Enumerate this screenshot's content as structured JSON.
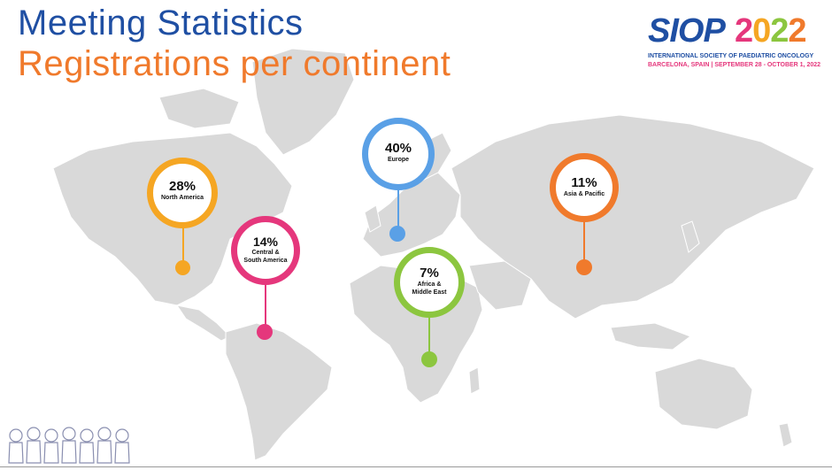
{
  "header": {
    "title": "Meeting Statistics",
    "subtitle": "Registrations per continent"
  },
  "logo": {
    "acronym": "SIOP",
    "year": [
      "2",
      "0",
      "2",
      "2"
    ],
    "organization": "INTERNATIONAL SOCIETY OF PAEDIATRIC ONCOLOGY",
    "event_details": "BARCELONA, SPAIN | SEPTEMBER 28 - OCTOBER 1, 2022"
  },
  "colors": {
    "title_blue": "#1f4fa3",
    "title_orange": "#f07a2c",
    "map_land": "#d9d9d9",
    "north_america": "#f5a623",
    "central_south_america": "#e5377c",
    "europe": "#5aa0e6",
    "africa_middle_east": "#8cc63f",
    "asia_pacific": "#f07a2c"
  },
  "regions": [
    {
      "id": "north_america",
      "percent": "28%",
      "label_line1": "North America",
      "label_line2": "",
      "value": 28
    },
    {
      "id": "central_south_america",
      "percent": "14%",
      "label_line1": "Central &",
      "label_line2": "South America",
      "value": 14
    },
    {
      "id": "europe",
      "percent": "40%",
      "label_line1": "Europe",
      "label_line2": "",
      "value": 40
    },
    {
      "id": "africa_middle_east",
      "percent": "7%",
      "label_line1": "Africa &",
      "label_line2": "Middle East",
      "value": 7
    },
    {
      "id": "asia_pacific",
      "percent": "11%",
      "label_line1": "Asia & Pacific",
      "label_line2": "",
      "value": 11
    }
  ]
}
